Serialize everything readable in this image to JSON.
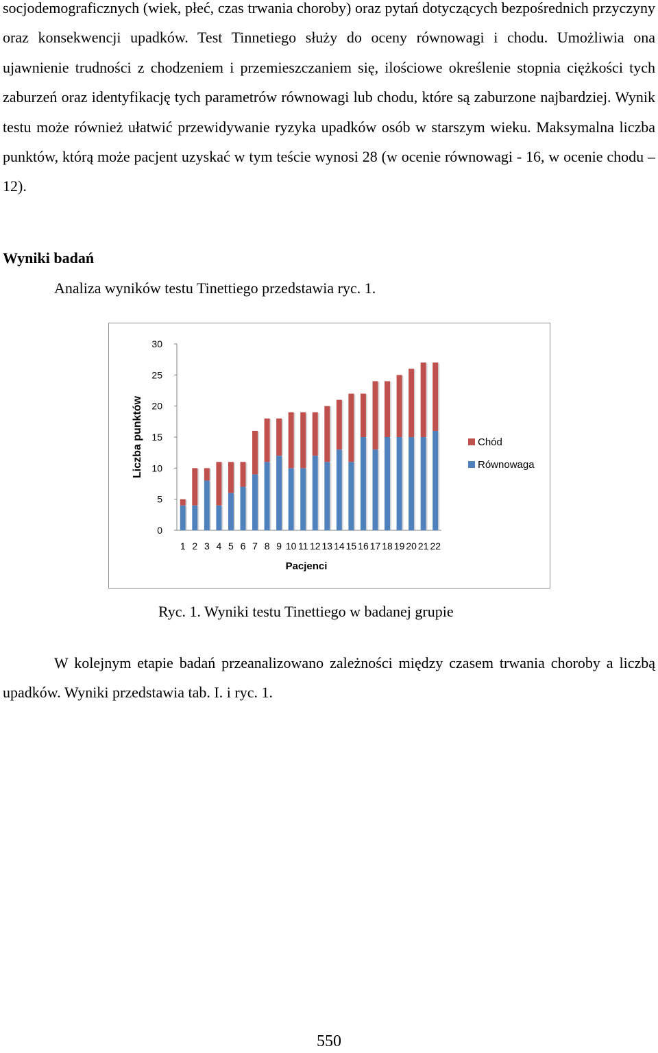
{
  "paragraph1": "socjodemograficznych (wiek, płeć, czas trwania choroby) oraz pytań dotyczących bezpośrednich przyczyny oraz konsekwencji upadków. Test Tinnetiego służy do oceny równowagi i chodu. Umożliwia ona ujawnienie trudności z chodzeniem i przemieszczaniem się, ilościowe określenie stopnia ciężkości tych zaburzeń oraz identyfikację tych parametrów równowagi lub chodu, które są zaburzone najbardziej. Wynik testu może również ułatwić przewidywanie ryzyka upadków osób w starszym wieku. Maksymalna liczba punktów, którą może pacjent uzyskać w tym teście wynosi 28 (w ocenie równowagi - 16, w ocenie chodu – 12).",
  "section_heading": "Wyniki badań",
  "intro_text": "Analiza wyników testu Tinettiego przedstawia ryc. 1.",
  "figure_caption": "Ryc. 1. Wyniki testu Tinettiego w badanej grupie",
  "paragraph2": "W kolejnym etapie badań przeanalizowano zależności między czasem trwania choroby a liczbą upadków. Wyniki przedstawia tab. I. i ryc. 1.",
  "page_number": "550",
  "chart_data": {
    "type": "bar",
    "stacked": true,
    "categories": [
      "1",
      "2",
      "3",
      "4",
      "5",
      "6",
      "7",
      "8",
      "9",
      "10",
      "11",
      "12",
      "13",
      "14",
      "15",
      "16",
      "17",
      "18",
      "19",
      "20",
      "21",
      "22"
    ],
    "series": [
      {
        "name": "Równowaga",
        "color": "#4f81bd",
        "values": [
          4,
          4,
          8,
          4,
          6,
          7,
          9,
          11,
          12,
          10,
          10,
          12,
          11,
          13,
          11,
          15,
          13,
          15,
          15,
          15,
          15,
          16
        ]
      },
      {
        "name": "Chód",
        "color": "#c0504d",
        "values": [
          1,
          6,
          2,
          7,
          5,
          4,
          7,
          7,
          6,
          9,
          9,
          7,
          9,
          8,
          11,
          7,
          11,
          9,
          10,
          11,
          12,
          11
        ]
      }
    ],
    "xlabel": "Pacjenci",
    "ylabel": "Liczba punktów",
    "ylim": [
      0,
      30
    ],
    "yticks": [
      "0",
      "5",
      "10",
      "15",
      "20",
      "25",
      "30"
    ],
    "legend_position": "right"
  }
}
